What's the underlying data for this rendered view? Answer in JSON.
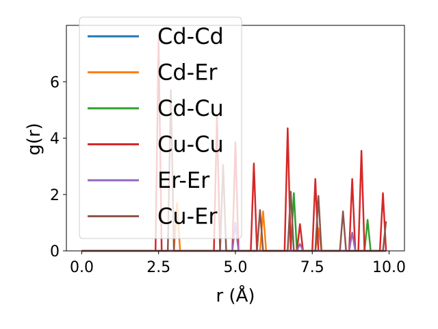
{
  "chart_data": {
    "type": "line",
    "title": "",
    "xlabel": "r (Å)",
    "ylabel": "g(r)",
    "xlim": [
      -0.5,
      10.5
    ],
    "ylim": [
      0,
      8.0
    ],
    "x_ticks": [
      0.0,
      2.5,
      5.0,
      7.5,
      10.0
    ],
    "x_tick_labels": [
      "0.0",
      "2.5",
      "5.0",
      "7.5",
      "10.0"
    ],
    "y_ticks": [
      0,
      2,
      4,
      6
    ],
    "y_tick_labels": [
      "0",
      "2",
      "4",
      "6"
    ],
    "grid": false,
    "legend_position": "upper-left",
    "x": [
      0.0,
      0.1,
      0.2,
      0.3,
      0.4,
      0.5,
      0.6,
      0.7,
      0.8,
      0.9,
      1.0,
      1.1,
      1.2,
      1.3,
      1.4,
      1.5,
      1.6,
      1.7,
      1.8,
      1.9,
      2.0,
      2.1,
      2.2,
      2.3,
      2.4,
      2.5,
      2.6,
      2.7,
      2.8,
      2.9,
      3.0,
      3.1,
      3.2,
      3.3,
      3.4,
      3.5,
      3.6,
      3.7,
      3.8,
      3.9,
      4.0,
      4.1,
      4.2,
      4.3,
      4.4,
      4.5,
      4.6,
      4.7,
      4.8,
      4.9,
      5.0,
      5.1,
      5.2,
      5.3,
      5.4,
      5.5,
      5.6,
      5.7,
      5.8,
      5.9,
      6.0,
      6.1,
      6.2,
      6.3,
      6.4,
      6.5,
      6.6,
      6.7,
      6.8,
      6.9,
      7.0,
      7.1,
      7.2,
      7.3,
      7.4,
      7.5,
      7.6,
      7.7,
      7.8,
      7.9,
      8.0,
      8.1,
      8.2,
      8.3,
      8.4,
      8.5,
      8.6,
      8.7,
      8.8,
      8.9,
      9.0,
      9.1,
      9.2,
      9.3,
      9.4,
      9.5,
      9.6,
      9.7,
      9.8,
      9.9
    ],
    "series": [
      {
        "name": "Cd-Cd",
        "color": "#1f77b4",
        "values": [
          0,
          0,
          0,
          0,
          0,
          0,
          0,
          0,
          0,
          0,
          0,
          0,
          0,
          0,
          0,
          0,
          0,
          0,
          0,
          0,
          0,
          0,
          0,
          0,
          0,
          0,
          0,
          0,
          0,
          0,
          0,
          0,
          0,
          0,
          0,
          0,
          0,
          0,
          0,
          0,
          0,
          0,
          0,
          0,
          0,
          0,
          0,
          0,
          0,
          0,
          0,
          0,
          0,
          0,
          0,
          0,
          0,
          0,
          0,
          0,
          0,
          0,
          0,
          0,
          0,
          0,
          0,
          0,
          0,
          0,
          0,
          0,
          0,
          0,
          0,
          0,
          0,
          0,
          0,
          0,
          0,
          0,
          0,
          0,
          0,
          0,
          0,
          0,
          0,
          0,
          0,
          0,
          0,
          0,
          0,
          0,
          0,
          0,
          0,
          0
        ]
      },
      {
        "name": "Cd-Er",
        "color": "#ff7f0e",
        "values": [
          0,
          0,
          0,
          0,
          0,
          0,
          0,
          0,
          0,
          0,
          0,
          0,
          0,
          0,
          0,
          0,
          0,
          0,
          0,
          0,
          0,
          0,
          0,
          0,
          0,
          0,
          0,
          0,
          0,
          0,
          0,
          1.7,
          0,
          0,
          0,
          0,
          0,
          0,
          0,
          0,
          0,
          0,
          0,
          0,
          0,
          0,
          0,
          0,
          0,
          0,
          0,
          0,
          0,
          0,
          0,
          0,
          0,
          0,
          0,
          1.4,
          0,
          0,
          0,
          0,
          0,
          0,
          0,
          0,
          0,
          0,
          0,
          0,
          0,
          0,
          0,
          0,
          0,
          0.8,
          0,
          0,
          0,
          0,
          0,
          0,
          0,
          0,
          0,
          0,
          0,
          0,
          0,
          0,
          0,
          0,
          0,
          0,
          0,
          0,
          0,
          0
        ]
      },
      {
        "name": "Cd-Cu",
        "color": "#2ca02c",
        "values": [
          0,
          0,
          0,
          0,
          0,
          0,
          0,
          0,
          0,
          0,
          0,
          0,
          0,
          0,
          0,
          0,
          0,
          0,
          0,
          0,
          0,
          0,
          0,
          0,
          0,
          0,
          0,
          0,
          0,
          0,
          0,
          0,
          0,
          0,
          0,
          0,
          0,
          0,
          0,
          0,
          0,
          0,
          0,
          0,
          0,
          0,
          0,
          0,
          0,
          0,
          0,
          0,
          0,
          0,
          0,
          0,
          0,
          0,
          0,
          0,
          0,
          0,
          0,
          0,
          0,
          0,
          0,
          0,
          0,
          2.05,
          0,
          0,
          0,
          0,
          0,
          0,
          0,
          0,
          0,
          0,
          0,
          0,
          0,
          0,
          0,
          0,
          0,
          0,
          0,
          0,
          0,
          0,
          0,
          1.1,
          0,
          0,
          0,
          0,
          0,
          0
        ]
      },
      {
        "name": "Cu-Cu",
        "color": "#d62728",
        "values": [
          0,
          0,
          0,
          0,
          0,
          0,
          0,
          0,
          0,
          0,
          0,
          0,
          0,
          0,
          0,
          0,
          0,
          0,
          0,
          0,
          0,
          0,
          0,
          0,
          0,
          7.5,
          0,
          0,
          0,
          0,
          0,
          0,
          0,
          0,
          0,
          0,
          0,
          0,
          0,
          0,
          0,
          0,
          0,
          0,
          4.8,
          0,
          0,
          0,
          0,
          0,
          3.85,
          0,
          0,
          0,
          0,
          0,
          3.1,
          0,
          0,
          0,
          0,
          0,
          0,
          0,
          0,
          0,
          0,
          4.35,
          0,
          0,
          0,
          0.95,
          0,
          0,
          0,
          0,
          2.55,
          0,
          0,
          0,
          0,
          0,
          0,
          0,
          0,
          0,
          0,
          0,
          2.55,
          0,
          0,
          3.55,
          0,
          0,
          0,
          0,
          0,
          0,
          2.05,
          0
        ]
      },
      {
        "name": "Er-Er",
        "color": "#9467bd",
        "values": [
          0,
          0,
          0,
          0,
          0,
          0,
          0,
          0,
          0,
          0,
          0,
          0,
          0,
          0,
          0,
          0,
          0,
          0,
          0,
          0,
          0,
          0,
          0,
          0,
          0,
          0,
          0,
          0,
          0,
          0,
          0,
          0,
          0,
          0,
          0,
          0,
          0,
          0,
          0,
          0,
          0,
          0,
          0,
          0,
          0,
          0,
          0,
          0,
          0,
          0,
          1.0,
          0,
          0,
          0,
          0,
          0,
          0,
          0,
          0,
          0,
          0,
          0,
          0,
          0,
          0,
          0,
          0,
          0,
          0,
          0,
          0,
          0.25,
          0,
          0,
          0,
          0,
          0,
          0,
          0,
          0,
          0,
          0,
          0,
          0,
          0,
          0,
          0,
          0,
          0.65,
          0,
          0,
          0,
          0,
          0,
          0,
          0,
          0,
          0,
          0,
          0
        ]
      },
      {
        "name": "Cu-Er",
        "color": "#8c564b",
        "values": [
          0,
          0,
          0,
          0,
          0,
          0,
          0,
          0,
          0,
          0,
          0,
          0,
          0,
          0,
          0,
          0,
          0,
          0,
          0,
          0,
          0,
          0,
          0,
          0,
          0,
          0,
          0,
          0,
          0,
          5.7,
          0,
          0,
          0,
          0,
          0,
          0,
          0,
          0,
          0,
          0,
          0,
          0,
          0,
          0,
          0,
          0,
          3.05,
          0,
          0,
          0,
          0,
          0,
          0,
          0,
          0,
          0,
          0,
          0,
          1.45,
          0,
          0,
          0,
          0,
          0,
          0,
          0,
          0,
          0,
          2.1,
          0,
          0,
          0,
          0,
          0,
          0,
          0,
          0,
          1.95,
          0,
          0,
          0,
          0,
          0,
          0,
          0,
          1.4,
          0,
          0,
          0,
          0,
          0,
          0,
          0,
          0,
          0,
          0,
          0,
          0,
          0,
          1.05
        ]
      }
    ]
  }
}
